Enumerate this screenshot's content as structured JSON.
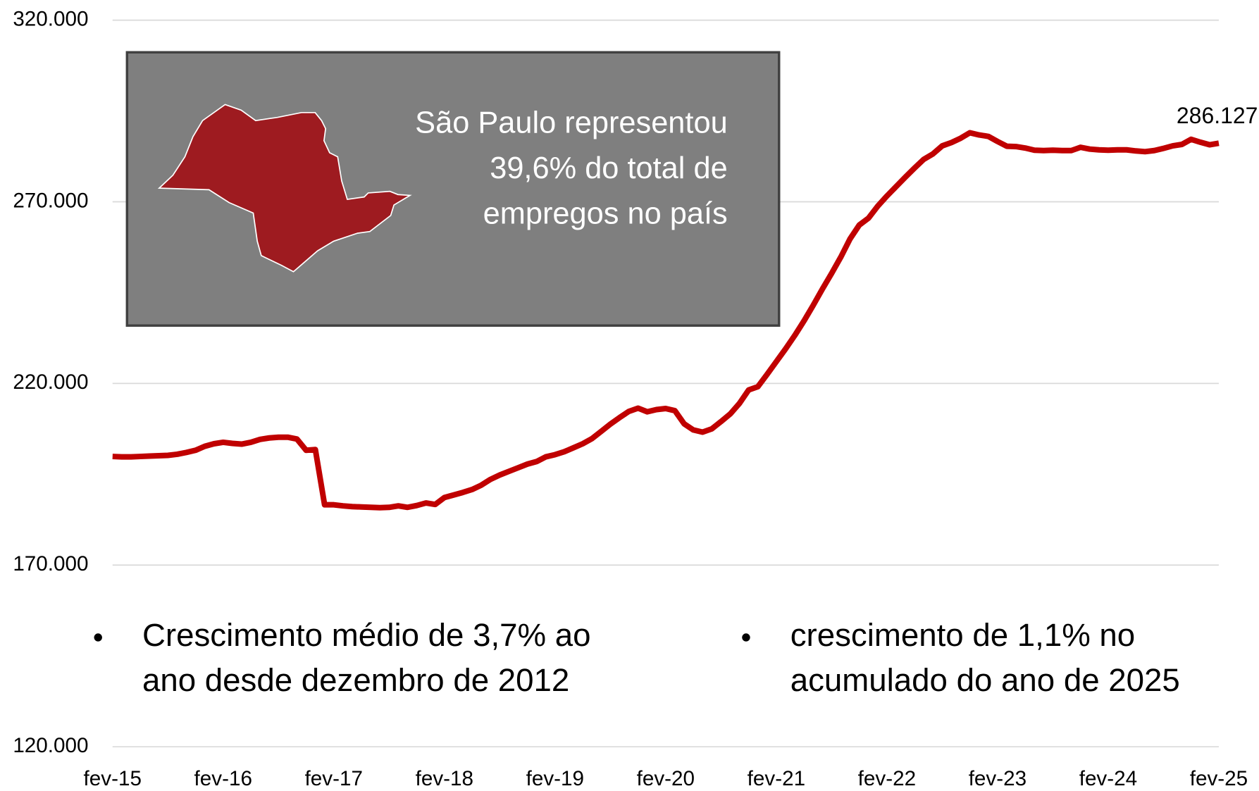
{
  "chart_data": {
    "type": "line",
    "categories": [
      "fev-15",
      null,
      null,
      null,
      null,
      null,
      null,
      null,
      null,
      null,
      null,
      null,
      "fev-16",
      null,
      null,
      null,
      null,
      null,
      null,
      null,
      null,
      null,
      null,
      null,
      "fev-17",
      null,
      null,
      null,
      null,
      null,
      null,
      null,
      null,
      null,
      null,
      null,
      "fev-18",
      null,
      null,
      null,
      null,
      null,
      null,
      null,
      null,
      null,
      null,
      null,
      "fev-19",
      null,
      null,
      null,
      null,
      null,
      null,
      null,
      null,
      null,
      null,
      null,
      "fev-20",
      null,
      null,
      null,
      null,
      null,
      null,
      null,
      null,
      null,
      null,
      null,
      "fev-21",
      null,
      null,
      null,
      null,
      null,
      null,
      null,
      null,
      null,
      null,
      null,
      "fev-22",
      null,
      null,
      null,
      null,
      null,
      null,
      null,
      null,
      null,
      null,
      null,
      "fev-23",
      null,
      null,
      null,
      null,
      null,
      null,
      null,
      null,
      null,
      null,
      null,
      "fev-24",
      null,
      null,
      null,
      null,
      null,
      null,
      null,
      null,
      null,
      null,
      null,
      "fev-25"
    ],
    "series": [
      {
        "color": "#c00000",
        "values": [
          199900,
          199800,
          199800,
          199900,
          200000,
          200100,
          200200,
          200500,
          201000,
          201600,
          202700,
          203400,
          203800,
          203500,
          203300,
          203800,
          204600,
          205000,
          205200,
          205200,
          204700,
          201600,
          201800,
          186600,
          186600,
          186300,
          186100,
          186000,
          185900,
          185800,
          185900,
          186300,
          185900,
          186400,
          187100,
          186700,
          188600,
          189300,
          190000,
          190800,
          192000,
          193600,
          194800,
          195800,
          196800,
          197800,
          198500,
          199800,
          200400,
          201200,
          202300,
          203400,
          204800,
          206800,
          208800,
          210600,
          212300,
          213200,
          212200,
          212800,
          213100,
          212500,
          208900,
          207200,
          206600,
          207500,
          209500,
          211600,
          214500,
          218200,
          219100,
          222500,
          226000,
          229500,
          233200,
          237200,
          241500,
          246000,
          250300,
          254800,
          259800,
          263600,
          265500,
          268800,
          271600,
          274200,
          276800,
          279300,
          281700,
          283200,
          285400,
          286300,
          287500,
          289000,
          288400,
          288000,
          286600,
          285300,
          285200,
          284800,
          284200,
          284100,
          284200,
          284100,
          284100,
          285000,
          284500,
          284300,
          284200,
          284300,
          284300,
          284000,
          283800,
          284100,
          284700,
          285400,
          285800,
          287200,
          286400,
          285700,
          286127
        ],
        "value_labels": [
          null,
          null,
          null,
          null,
          null,
          null,
          null,
          null,
          null,
          null,
          null,
          null,
          null,
          null,
          null,
          null,
          null,
          null,
          null,
          null,
          null,
          null,
          null,
          null,
          null,
          null,
          null,
          null,
          null,
          null,
          null,
          null,
          null,
          null,
          null,
          null,
          null,
          null,
          null,
          null,
          null,
          null,
          null,
          null,
          null,
          null,
          null,
          null,
          null,
          null,
          null,
          null,
          null,
          null,
          null,
          null,
          null,
          null,
          null,
          null,
          null,
          null,
          null,
          null,
          null,
          null,
          null,
          null,
          null,
          null,
          null,
          null,
          null,
          null,
          null,
          null,
          null,
          null,
          null,
          null,
          null,
          null,
          null,
          null,
          null,
          null,
          null,
          null,
          null,
          null,
          null,
          null,
          null,
          null,
          null,
          null,
          null,
          null,
          null,
          null,
          null,
          null,
          null,
          null,
          null,
          null,
          null,
          null,
          null,
          null,
          null,
          null,
          null,
          null,
          null,
          null,
          null,
          null,
          null,
          null,
          "286.127"
        ]
      }
    ],
    "ylim": [
      120000,
      320000
    ],
    "yticks": [
      {
        "value": 120000,
        "label": "120.000"
      },
      {
        "value": 170000,
        "label": "170.000"
      },
      {
        "value": 220000,
        "label": "220.000"
      },
      {
        "value": 270000,
        "label": "270.000"
      },
      {
        "value": 320000,
        "label": "320.000"
      }
    ],
    "grid": true,
    "annotations": {
      "box": [
        "São Paulo representou",
        "39,6% do total de",
        "empregos no país"
      ],
      "left": [
        "Crescimento médio de 3,7% ao",
        "ano desde dezembro de 2012"
      ],
      "right": [
        "crescimento de 1,1% no",
        "acumulado do ano de 2025"
      ]
    }
  }
}
